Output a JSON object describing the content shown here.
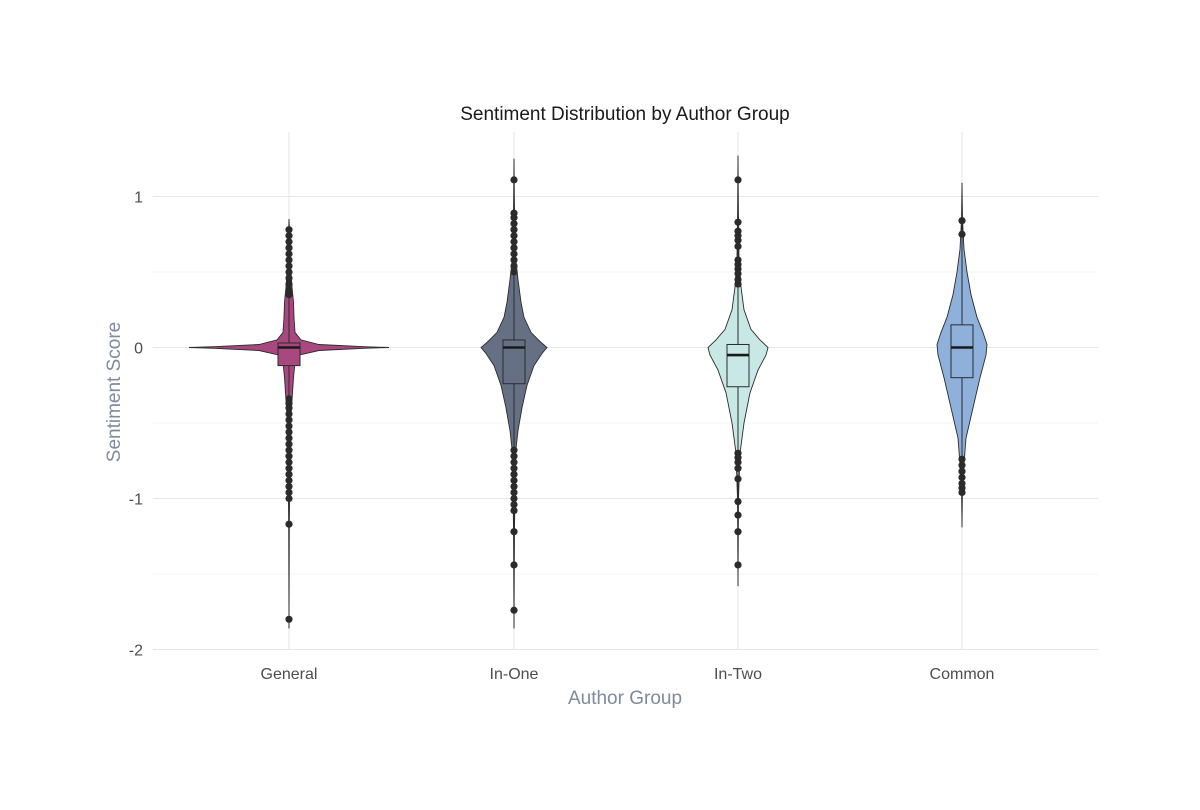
{
  "chart_data": {
    "type": "violin",
    "title": "Sentiment Distribution by Author Group",
    "xlabel": "Author Group",
    "ylabel": "Sentiment Score",
    "categories": [
      "General",
      "In-One",
      "In-Two",
      "Common"
    ],
    "ylim": [
      -2.0,
      1.4
    ],
    "yticks": [
      1,
      0,
      -1,
      -2
    ],
    "ytick_labels": [
      "1",
      "0",
      "-1",
      "-2"
    ],
    "grid": true,
    "legend": "none",
    "series": [
      {
        "category": "General",
        "color": "#A8487F",
        "box": {
          "whisker_low": -1.86,
          "q1": -0.12,
          "median": 0.0,
          "q3": 0.03,
          "whisker_high": 0.85
        },
        "violin_profile": [
          [
            -1.86,
            0.0
          ],
          [
            -1.2,
            0.003
          ],
          [
            -0.8,
            0.008
          ],
          [
            -0.5,
            0.015
          ],
          [
            -0.35,
            0.03
          ],
          [
            -0.2,
            0.045
          ],
          [
            -0.1,
            0.06
          ],
          [
            -0.05,
            0.1
          ],
          [
            -0.02,
            0.3
          ],
          [
            -0.005,
            0.75
          ],
          [
            0.0,
            1.0
          ],
          [
            0.005,
            0.75
          ],
          [
            0.02,
            0.3
          ],
          [
            0.05,
            0.12
          ],
          [
            0.1,
            0.06
          ],
          [
            0.2,
            0.05
          ],
          [
            0.3,
            0.045
          ],
          [
            0.4,
            0.03
          ],
          [
            0.55,
            0.015
          ],
          [
            0.7,
            0.008
          ],
          [
            0.85,
            0.0
          ]
        ],
        "outliers": [
          0.78,
          0.74,
          0.7,
          0.66,
          0.62,
          0.58,
          0.54,
          0.5,
          0.46,
          0.42,
          0.38,
          0.35,
          -0.34,
          -0.37,
          -0.4,
          -0.44,
          -0.48,
          -0.52,
          -0.56,
          -0.6,
          -0.64,
          -0.68,
          -0.72,
          -0.76,
          -0.8,
          -0.84,
          -0.88,
          -0.92,
          -0.96,
          -1.0,
          -1.17,
          -1.8
        ]
      },
      {
        "category": "In-One",
        "color": "#667085",
        "box": {
          "whisker_low": -1.86,
          "q1": -0.24,
          "median": 0.0,
          "q3": 0.05,
          "whisker_high": 1.25
        },
        "violin_profile": [
          [
            -1.86,
            0.0
          ],
          [
            -1.2,
            0.005
          ],
          [
            -0.7,
            0.015
          ],
          [
            -0.55,
            0.04
          ],
          [
            -0.4,
            0.08
          ],
          [
            -0.25,
            0.13
          ],
          [
            -0.12,
            0.2
          ],
          [
            -0.04,
            0.28
          ],
          [
            0.0,
            0.33
          ],
          [
            0.04,
            0.26
          ],
          [
            0.1,
            0.17
          ],
          [
            0.2,
            0.1
          ],
          [
            0.3,
            0.07
          ],
          [
            0.45,
            0.04
          ],
          [
            0.6,
            0.015
          ],
          [
            0.9,
            0.005
          ],
          [
            1.25,
            0.0
          ]
        ],
        "outliers": [
          1.11,
          0.89,
          0.86,
          0.82,
          0.78,
          0.74,
          0.7,
          0.66,
          0.62,
          0.58,
          0.54,
          0.5,
          -0.68,
          -0.72,
          -0.76,
          -0.8,
          -0.84,
          -0.88,
          -0.92,
          -0.96,
          -1.0,
          -1.04,
          -1.08,
          -1.22,
          -1.44,
          -1.74
        ]
      },
      {
        "category": "In-Two",
        "color": "#C8E8E5",
        "box": {
          "whisker_low": -1.58,
          "q1": -0.26,
          "median": -0.05,
          "q3": 0.02,
          "whisker_high": 1.27
        },
        "violin_profile": [
          [
            -1.58,
            0.0
          ],
          [
            -1.0,
            0.005
          ],
          [
            -0.7,
            0.02
          ],
          [
            -0.5,
            0.06
          ],
          [
            -0.3,
            0.12
          ],
          [
            -0.15,
            0.2
          ],
          [
            -0.05,
            0.28
          ],
          [
            0.0,
            0.3
          ],
          [
            0.05,
            0.22
          ],
          [
            0.12,
            0.13
          ],
          [
            0.25,
            0.06
          ],
          [
            0.4,
            0.03
          ],
          [
            0.6,
            0.01
          ],
          [
            0.9,
            0.004
          ],
          [
            1.27,
            0.0
          ]
        ],
        "outliers": [
          1.11,
          0.83,
          0.77,
          0.74,
          0.71,
          0.67,
          0.58,
          0.55,
          0.52,
          0.49,
          0.45,
          0.42,
          -0.7,
          -0.73,
          -0.76,
          -0.8,
          -0.87,
          -1.02,
          -1.11,
          -1.22,
          -1.44
        ]
      },
      {
        "category": "Common",
        "color": "#8EB0DB",
        "box": {
          "whisker_low": -1.19,
          "q1": -0.2,
          "median": 0.0,
          "q3": 0.15,
          "whisker_high": 1.09
        },
        "violin_profile": [
          [
            -1.19,
            0.0
          ],
          [
            -0.9,
            0.005
          ],
          [
            -0.6,
            0.04
          ],
          [
            -0.4,
            0.11
          ],
          [
            -0.2,
            0.18
          ],
          [
            -0.05,
            0.24
          ],
          [
            0.02,
            0.25
          ],
          [
            0.1,
            0.21
          ],
          [
            0.2,
            0.15
          ],
          [
            0.35,
            0.09
          ],
          [
            0.5,
            0.05
          ],
          [
            0.65,
            0.02
          ],
          [
            0.85,
            0.005
          ],
          [
            1.09,
            0.0
          ]
        ],
        "outliers": [
          0.84,
          0.75,
          -0.74,
          -0.78,
          -0.82,
          -0.86,
          -0.9,
          -0.93,
          -0.96
        ]
      }
    ]
  }
}
